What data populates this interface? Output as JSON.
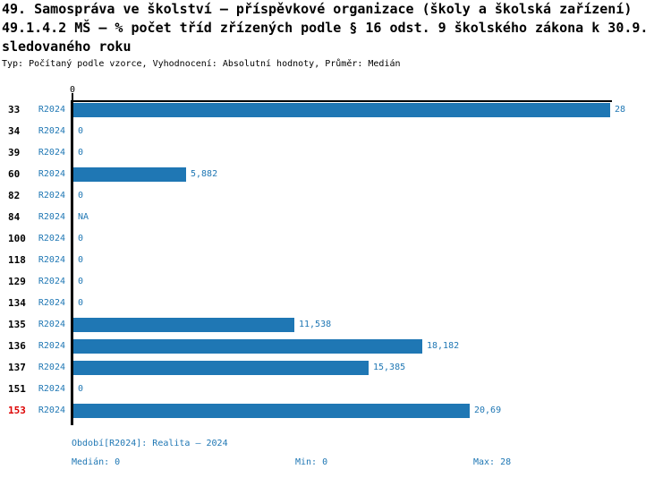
{
  "title": {
    "line1": "49. Samospráva ve školství – příspěvkové organizace (školy a školská zařízení)",
    "line2": "49.1.4.2 MŠ – % počet tříd zřízených podle § 16 odst. 9 školského zákona k 30.9.",
    "line3": "sledovaného roku",
    "subtitle": "Typ: Počítaný podle vzorce, Vyhodnocení: Absolutní hodnoty, Průměr: Medián"
  },
  "chart_data": {
    "type": "bar",
    "orientation": "horizontal",
    "series_label": "R2024",
    "axis_tick_label": "0",
    "xlim": [
      0,
      28
    ],
    "bar_color": "#1f77b4",
    "text_color": "#1f77b4",
    "highlight_color": "#dd0000",
    "rows": [
      {
        "id": "33",
        "value": 28,
        "label": "28",
        "highlight": false
      },
      {
        "id": "34",
        "value": 0,
        "label": "0",
        "highlight": false
      },
      {
        "id": "39",
        "value": 0,
        "label": "0",
        "highlight": false
      },
      {
        "id": "60",
        "value": 5.882,
        "label": "5,882",
        "highlight": false
      },
      {
        "id": "82",
        "value": 0,
        "label": "0",
        "highlight": false
      },
      {
        "id": "84",
        "value": null,
        "label": "NA",
        "highlight": false
      },
      {
        "id": "100",
        "value": 0,
        "label": "0",
        "highlight": false
      },
      {
        "id": "118",
        "value": 0,
        "label": "0",
        "highlight": false
      },
      {
        "id": "129",
        "value": 0,
        "label": "0",
        "highlight": false
      },
      {
        "id": "134",
        "value": 0,
        "label": "0",
        "highlight": false
      },
      {
        "id": "135",
        "value": 11.538,
        "label": "11,538",
        "highlight": false
      },
      {
        "id": "136",
        "value": 18.182,
        "label": "18,182",
        "highlight": false
      },
      {
        "id": "137",
        "value": 15.385,
        "label": "15,385",
        "highlight": false
      },
      {
        "id": "151",
        "value": 0,
        "label": "0",
        "highlight": false
      },
      {
        "id": "153",
        "value": 20.69,
        "label": "20,69",
        "highlight": true
      }
    ]
  },
  "footer": {
    "period": "Období[R2024]: Realita – 2024",
    "median": "Medián: 0",
    "min": "Min: 0",
    "max": "Max: 28"
  }
}
